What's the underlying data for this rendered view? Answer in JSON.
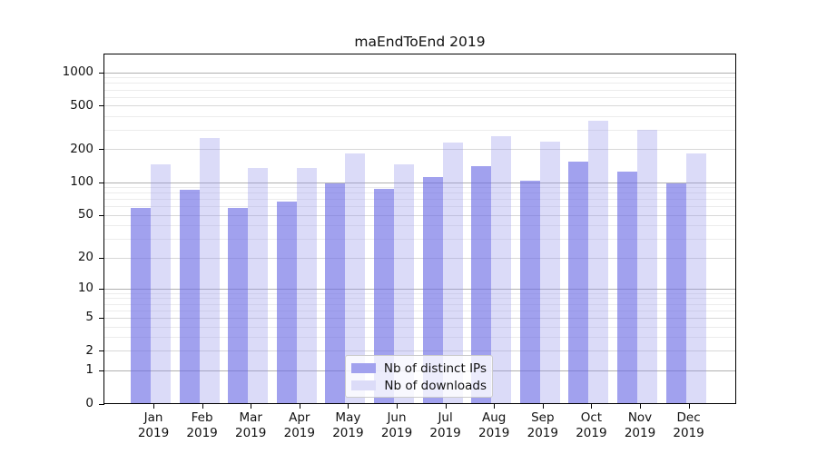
{
  "title": "maEndToEnd 2019",
  "chart_data": {
    "type": "bar",
    "title": "maEndToEnd 2019",
    "categories": [
      "Jan 2019",
      "Feb 2019",
      "Mar 2019",
      "Apr 2019",
      "May 2019",
      "Jun 2019",
      "Jul 2019",
      "Aug 2019",
      "Sep 2019",
      "Oct 2019",
      "Nov 2019",
      "Dec 2019"
    ],
    "series": [
      {
        "name": "Nb of distinct IPs",
        "legend_color": "#a1a1ee",
        "bar_fill": "rgba(108,108,229,0.64)",
        "values": [
          58,
          86,
          58,
          67,
          98,
          88,
          112,
          141,
          103,
          155,
          125,
          98
        ]
      },
      {
        "name": "Nb of downloads",
        "legend_color": "#dcdcf8",
        "bar_fill": "rgba(147,147,234,0.33)",
        "values": [
          147,
          254,
          135,
          135,
          184,
          146,
          232,
          263,
          235,
          364,
          299,
          183
        ]
      }
    ],
    "yscale": "log1p",
    "yticks": [
      0,
      1,
      2,
      5,
      10,
      20,
      50,
      100,
      200,
      500,
      1000
    ],
    "yticks_minor": [
      3,
      4,
      6,
      7,
      8,
      9,
      30,
      40,
      60,
      70,
      80,
      90,
      300,
      400,
      600,
      700,
      800,
      900
    ],
    "ylim": [
      0,
      1467
    ],
    "grid": true,
    "legend_position": "lower center",
    "colors": {
      "grid_decade": "#b0b0b0",
      "grid_labeled": "#d8d8d8",
      "grid_minor": "#ececec",
      "axis": "#000000",
      "text": "#111111"
    }
  }
}
